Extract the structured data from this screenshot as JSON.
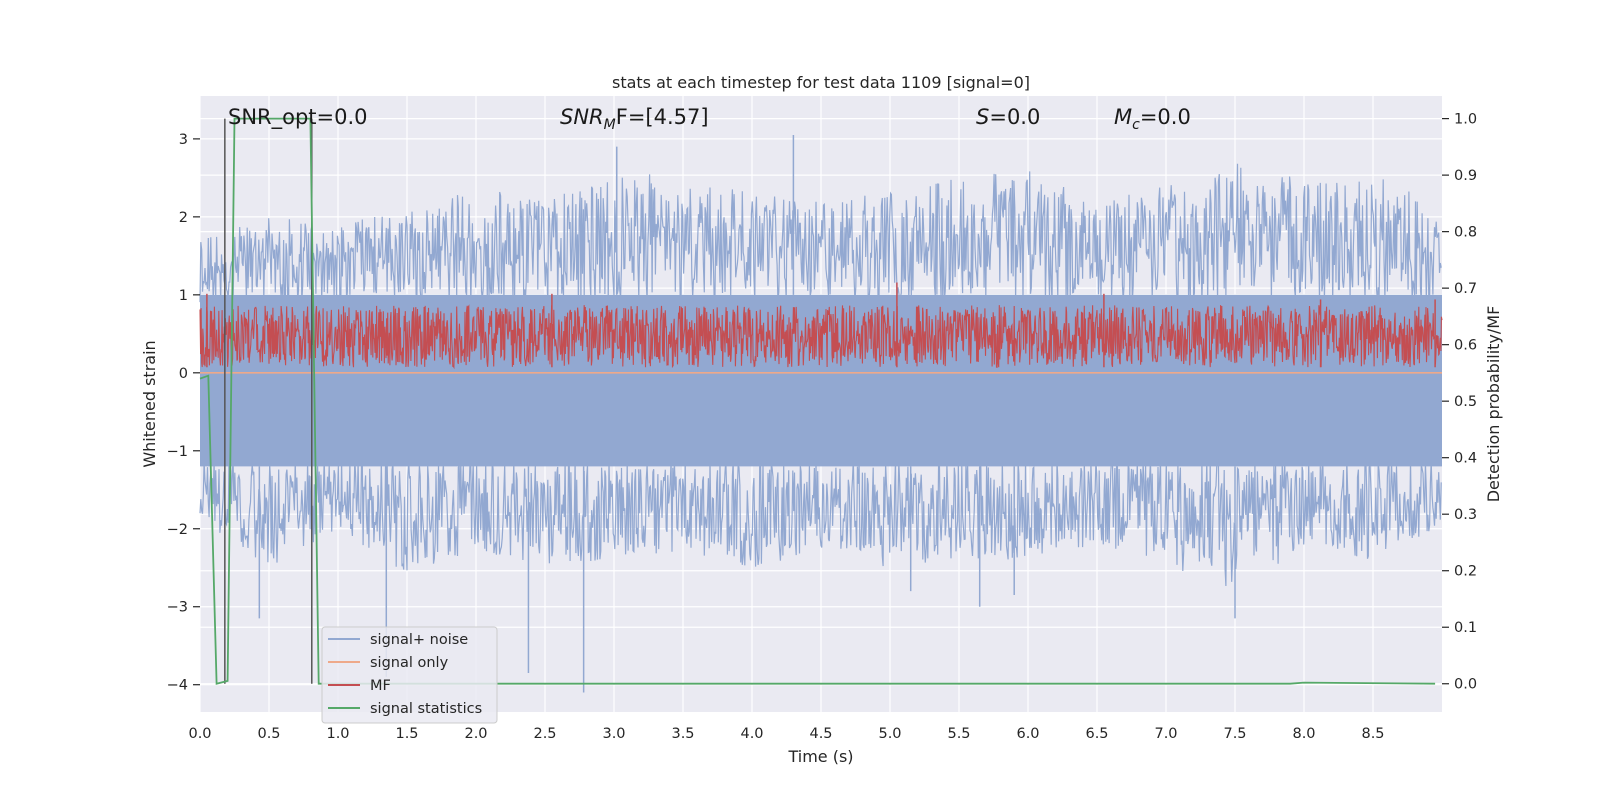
{
  "chart_data": {
    "type": "line",
    "title": "stats at each timestep for test data 1109 [signal=0]",
    "xlabel": "Time (s)",
    "ylabel_left": "Whitened strain",
    "ylabel_right": "Detection probability/MF",
    "xlim": [
      0.0,
      9.0
    ],
    "ylim_left": [
      -4.35,
      3.55
    ],
    "ylim_right": [
      -0.05,
      1.04
    ],
    "x_ticks": [
      0.0,
      0.5,
      1.0,
      1.5,
      2.0,
      2.5,
      3.0,
      3.5,
      4.0,
      4.5,
      5.0,
      5.5,
      6.0,
      6.5,
      7.0,
      7.5,
      8.0,
      8.5
    ],
    "x_tick_labels": [
      "0.0",
      "0.5",
      "1.0",
      "1.5",
      "2.0",
      "2.5",
      "3.0",
      "3.5",
      "4.0",
      "4.5",
      "5.0",
      "5.5",
      "6.0",
      "6.5",
      "7.0",
      "7.5",
      "8.0",
      "8.5"
    ],
    "y_left_ticks": [
      -4,
      -3,
      -2,
      -1,
      0,
      1,
      2,
      3
    ],
    "y_left_tick_labels": [
      "−4",
      "−3",
      "−2",
      "−1",
      "0",
      "1",
      "2",
      "3"
    ],
    "y_right_ticks": [
      0.0,
      0.1,
      0.2,
      0.3,
      0.4,
      0.5,
      0.6,
      0.7,
      0.8,
      0.9,
      1.0
    ],
    "y_right_tick_labels": [
      "0.0",
      "0.1",
      "0.2",
      "0.3",
      "0.4",
      "0.5",
      "0.6",
      "0.7",
      "0.8",
      "0.9",
      "1.0"
    ],
    "grid": true,
    "legend_position": "lower-left",
    "annotations": {
      "snr_opt": "SNR_opt=0.0",
      "snr_mf_main": "SNR",
      "snr_mf_sub": "M",
      "snr_mf_rest": "F=[4.57]",
      "s_main": "S",
      "s_rest": "=0.0",
      "mc_main": "M",
      "mc_sub": "c",
      "mc_rest": "=0.0"
    },
    "vertical_lines_x": [
      0.18,
      0.81
    ],
    "series": [
      {
        "name": "signal+ noise",
        "color": "#92a8d1",
        "axis": "left",
        "kind": "noise band",
        "upper_envelope": {
          "x": [
            0,
            0.5,
            1,
            1.5,
            2,
            2.5,
            3,
            3.5,
            4,
            4.5,
            5,
            5.5,
            6,
            6.5,
            7,
            7.5,
            8,
            8.5,
            9
          ],
          "y": [
            1.7,
            2.0,
            1.9,
            2.1,
            2.4,
            2.2,
            2.6,
            2.5,
            2.3,
            2.2,
            2.4,
            2.5,
            2.6,
            2.2,
            2.4,
            2.7,
            2.5,
            2.6,
            2.1
          ]
        },
        "lower_envelope": {
          "x": [
            0,
            0.5,
            1,
            1.5,
            2,
            2.5,
            3,
            3.5,
            4,
            4.5,
            5,
            5.5,
            6,
            6.5,
            7,
            7.5,
            8,
            8.5,
            9
          ],
          "y": [
            -1.9,
            -2.5,
            -2.0,
            -2.6,
            -2.3,
            -2.5,
            -2.4,
            -2.3,
            -2.5,
            -2.3,
            -2.5,
            -2.4,
            -2.4,
            -2.2,
            -2.5,
            -2.8,
            -2.3,
            -2.4,
            -2.0
          ]
        },
        "spikes": {
          "x": [
            0.43,
            1.35,
            2.38,
            2.78,
            3.02,
            4.3,
            5.15,
            5.65,
            5.9,
            7.5
          ],
          "y": [
            -3.15,
            -3.9,
            -3.85,
            -4.1,
            2.9,
            3.05,
            -2.8,
            -3.0,
            -2.85,
            -3.15
          ]
        }
      },
      {
        "name": "signal only",
        "color": "#eea98a",
        "axis": "left",
        "x": [
          0,
          9
        ],
        "y": [
          0.0,
          0.0
        ]
      },
      {
        "name": "MF",
        "color": "#c44e52",
        "axis": "right",
        "kind": "noise band",
        "baseline": 0.56,
        "typical_max": 0.67,
        "peaks": {
          "x": [
            0.05,
            2.55,
            5.05,
            6.55,
            8.12,
            8.95
          ],
          "y": [
            0.69,
            0.69,
            0.71,
            0.69,
            0.68,
            0.68
          ]
        }
      },
      {
        "name": "signal statistics",
        "color": "#55a868",
        "axis": "right",
        "x": [
          0.0,
          0.06,
          0.12,
          0.2,
          0.25,
          0.8,
          0.86,
          1.0,
          7.9,
          8.0,
          8.95
        ],
        "y": [
          0.54,
          0.545,
          0.0,
          0.005,
          1.0,
          1.0,
          0.0,
          0.0,
          0.0,
          0.002,
          0.0
        ]
      }
    ]
  }
}
